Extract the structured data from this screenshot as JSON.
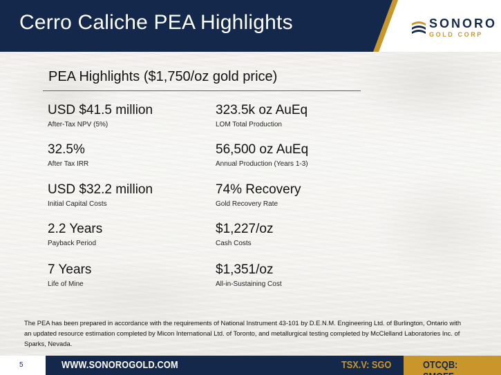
{
  "header": {
    "title": "Cerro Caliche PEA Highlights",
    "logo_main": "SONORO",
    "logo_sub": "GOLD CORP"
  },
  "section": {
    "title": "PEA Highlights ($1,750/oz gold price)"
  },
  "metrics_left": [
    {
      "value": "USD $41.5 million",
      "label": "After-Tax NPV (5%)"
    },
    {
      "value": "32.5%",
      "label": "After Tax IRR"
    },
    {
      "value": "USD $32.2 million",
      "label": "Initial Capital Costs"
    },
    {
      "value": "2.2 Years",
      "label": "Payback Period"
    },
    {
      "value": "7 Years",
      "label": "Life of Mine"
    }
  ],
  "metrics_right": [
    {
      "value": "323.5k oz AuEq",
      "label": "LOM Total Production"
    },
    {
      "value": "56,500 oz AuEq",
      "label": "Annual Production (Years 1-3)"
    },
    {
      "value": "74% Recovery",
      "label": "Gold Recovery Rate"
    },
    {
      "value": "$1,227/oz",
      "label": "Cash Costs"
    },
    {
      "value": "$1,351/oz",
      "label": "All-in-Sustaining Cost"
    }
  ],
  "footnote": "The PEA has been prepared in accordance with the requirements of National Instrument 43-101 by D.E.N.M. Engineering Ltd. of Burlington, Ontario with an updated resource estimation completed by Micon International Ltd. of Toronto, and metallurgical testing completed by McClelland Laboratories Inc. of Sparks, Nevada.",
  "footer": {
    "page": "5",
    "url": "WWW.SONOROGOLD.COM",
    "tsx": "TSX.V: SGO",
    "otc": "OTCQB: SMOFF"
  },
  "colors": {
    "navy": "#13284a",
    "gold": "#c9962b",
    "rule": "#3c6d8c"
  }
}
